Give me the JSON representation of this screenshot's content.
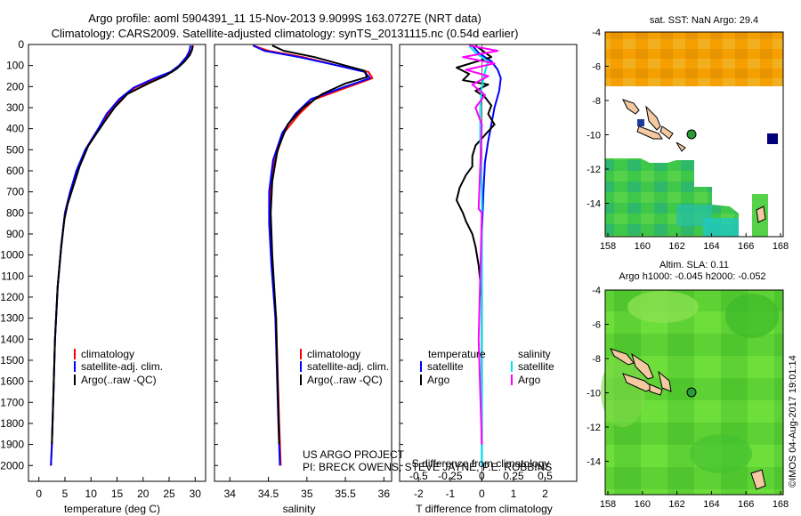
{
  "header": {
    "line1": "Argo profile: aoml 5904391_11 15-Nov-2013 9.9099S 163.0727E (NRT data)",
    "line2": "Climatology: CARS2009. Satellite-adjusted climatology: synTS_20131115.nc (0.54d earlier)"
  },
  "colors": {
    "climatology": "#ff0000",
    "satellite": "#0000ff",
    "argo": "#000000",
    "sal_satellite": "#00e5ee",
    "sal_argo": "#ff00ff"
  },
  "chart_data": [
    {
      "type": "line",
      "title": "",
      "xlabel": "temperature (deg C)",
      "ylabel": "",
      "xlim": [
        -2,
        32
      ],
      "ylim": [
        2075,
        0
      ],
      "xticks": [
        0,
        5,
        10,
        15,
        20,
        25,
        30
      ],
      "yticks": [
        0,
        100,
        200,
        300,
        400,
        500,
        600,
        700,
        800,
        900,
        1000,
        1100,
        1200,
        1300,
        1400,
        1500,
        1600,
        1700,
        1800,
        1900,
        2000
      ],
      "legend": {
        "position": "lower-center",
        "labels": [
          "climatology",
          "satellite-adj. clim.",
          "Argo(..raw -QC)"
        ]
      },
      "series": [
        {
          "name": "climatology",
          "color": "#ff0000",
          "x": [
            29.6,
            29.3,
            28.6,
            27.0,
            25.6,
            22.5,
            18.5,
            15.6,
            13.2,
            11.6,
            9.0,
            7.3,
            6.0,
            5.0,
            4.3,
            3.6,
            3.1,
            2.8,
            2.5,
            2.3
          ],
          "y": [
            5,
            30,
            60,
            100,
            130,
            160,
            205,
            260,
            330,
            400,
            500,
            600,
            700,
            800,
            950,
            1150,
            1400,
            1650,
            1900,
            2000
          ]
        },
        {
          "name": "satellite-adj. clim.",
          "color": "#0000ff",
          "x": [
            29.1,
            28.9,
            28.3,
            26.9,
            25.3,
            22.2,
            18.2,
            15.4,
            13.0,
            11.4,
            8.9,
            7.2,
            6.0,
            5.0,
            4.3,
            3.6,
            3.1,
            2.8,
            2.5,
            2.3
          ],
          "y": [
            5,
            30,
            60,
            100,
            130,
            160,
            205,
            260,
            330,
            400,
            500,
            600,
            700,
            800,
            950,
            1150,
            1400,
            1650,
            1900,
            2000
          ]
        },
        {
          "name": "Argo",
          "color": "#000000",
          "x": [
            29.5,
            29.4,
            29.0,
            28.0,
            26.5,
            24.2,
            21.0,
            17.0,
            14.5,
            12.5,
            9.5,
            7.8,
            5.5,
            4.9,
            4.3,
            3.6,
            3.1,
            2.8,
            2.5
          ],
          "y": [
            5,
            25,
            50,
            80,
            115,
            150,
            185,
            235,
            300,
            370,
            480,
            580,
            760,
            830,
            960,
            1150,
            1400,
            1650,
            1900
          ]
        }
      ]
    },
    {
      "type": "line",
      "title": "",
      "xlabel": "salinity",
      "ylabel": "",
      "xlim": [
        33.8,
        36.1
      ],
      "ylim": [
        2075,
        0
      ],
      "xticks": [
        34,
        34.5,
        35,
        35.5,
        36
      ],
      "legend": {
        "position": "lower-center",
        "labels": [
          "climatology",
          "satellite-adj. clim.",
          "Argo(..raw -QC)"
        ]
      },
      "series": [
        {
          "name": "climatology",
          "color": "#ff0000",
          "x": [
            34.3,
            34.5,
            34.95,
            35.4,
            35.8,
            35.85,
            35.55,
            35.1,
            34.9,
            34.7,
            34.58,
            34.52,
            34.52,
            34.55,
            34.6,
            34.62,
            34.64,
            34.66
          ],
          "y": [
            5,
            30,
            60,
            100,
            130,
            160,
            200,
            260,
            330,
            420,
            550,
            700,
            850,
            1050,
            1300,
            1550,
            1800,
            2000
          ]
        },
        {
          "name": "satellite-adj. clim.",
          "color": "#0000ff",
          "x": [
            34.3,
            34.45,
            34.9,
            35.4,
            35.75,
            35.82,
            35.5,
            35.05,
            34.85,
            34.68,
            34.56,
            34.51,
            34.51,
            34.54,
            34.59,
            34.61,
            34.63,
            34.65
          ],
          "y": [
            5,
            30,
            60,
            100,
            130,
            160,
            200,
            260,
            330,
            420,
            550,
            700,
            850,
            1050,
            1300,
            1550,
            1800,
            2000
          ]
        },
        {
          "name": "Argo",
          "color": "#000000",
          "x": [
            34.55,
            34.7,
            35.1,
            35.5,
            35.75,
            35.78,
            35.5,
            35.2,
            34.95,
            34.75,
            34.62,
            34.55,
            34.53,
            34.55,
            34.6,
            34.62,
            34.64
          ],
          "y": [
            5,
            30,
            60,
            100,
            125,
            155,
            185,
            235,
            300,
            380,
            500,
            650,
            800,
            1000,
            1300,
            1600,
            1900
          ]
        }
      ]
    },
    {
      "type": "line",
      "title": "S difference from climatology",
      "xlabel": "T difference from climatology",
      "ylabel": "",
      "xlim": [
        -2.6,
        3.0
      ],
      "ylim": [
        2075,
        0
      ],
      "xticks": [
        -2,
        -1,
        0,
        1,
        2
      ],
      "top_ticks": [
        "-0.5",
        "-0.25",
        "0",
        "0.25",
        "0.5"
      ],
      "legend": {
        "position": "lower-center",
        "temperature_header": "temperature",
        "salinity_header": "salinity",
        "labels": [
          "satellite",
          "Argo",
          "satellite",
          "Argo"
        ]
      },
      "series": [
        {
          "name": "temperature satellite",
          "color": "#0000ff",
          "x": [
            -0.3,
            -0.1,
            0.3,
            0.5,
            0.6,
            0.55,
            0.4,
            0.3,
            0.2,
            0.1,
            0.05,
            0.0,
            0.0,
            0.0
          ],
          "y": [
            5,
            40,
            80,
            120,
            160,
            220,
            300,
            380,
            460,
            560,
            700,
            900,
            1300,
            2000
          ]
        },
        {
          "name": "temperature Argo",
          "color": "#000000",
          "x": [
            -0.2,
            0.3,
            -0.8,
            -0.4,
            -0.6,
            0.2,
            -0.2,
            0.1,
            0.3,
            0.2,
            0.4,
            0.1,
            -0.2,
            -0.3,
            -0.3,
            -0.5,
            -0.7,
            -0.8,
            -0.6,
            -0.5,
            -0.3,
            -0.2,
            -0.1,
            0.0,
            0.0,
            0.0,
            0.0
          ],
          "y": [
            5,
            60,
            110,
            140,
            170,
            190,
            220,
            250,
            290,
            330,
            380,
            430,
            480,
            530,
            580,
            620,
            680,
            740,
            800,
            840,
            900,
            960,
            1050,
            1200,
            1500,
            1800,
            1900
          ]
        },
        {
          "name": "salinity satellite",
          "color": "#00e5ee",
          "x": [
            -0.4,
            -0.2,
            0.2,
            0.1,
            0.0,
            -0.05,
            -0.05,
            0.0,
            0.0,
            0.0,
            0.0
          ],
          "y": [
            5,
            40,
            80,
            130,
            200,
            300,
            450,
            700,
            1000,
            1500,
            2000
          ]
        },
        {
          "name": "salinity Argo",
          "color": "#ff00ff",
          "x": [
            -0.4,
            0.5,
            -0.6,
            0.4,
            -0.5,
            0.2,
            -0.3,
            0.1,
            -0.2,
            0.0,
            -0.1,
            0.0,
            -0.1,
            0.0
          ],
          "y": [
            5,
            30,
            60,
            90,
            120,
            150,
            190,
            240,
            300,
            380,
            780,
            800,
            1400,
            1900
          ]
        }
      ]
    }
  ],
  "maps": {
    "sst": {
      "title": "sat. SST: NaN Argo: 29.4",
      "xticks": [
        "158",
        "160",
        "162",
        "164",
        "166",
        "168"
      ],
      "yticks": [
        "-4",
        "-6",
        "-8",
        "-10",
        "-12",
        "-14"
      ],
      "marker": {
        "lon": 163.07,
        "lat": -9.91
      }
    },
    "sla": {
      "title_line1": "Altim. SLA: 0.11",
      "title_line2": "Argo h1000: -0.045 h2000: -0.052",
      "xticks": [
        "158",
        "160",
        "162",
        "164",
        "166",
        "168"
      ],
      "yticks": [
        "-4",
        "-6",
        "-8",
        "-10",
        "-12",
        "-14"
      ],
      "marker": {
        "lon": 163.07,
        "lat": -9.91
      }
    }
  },
  "footer": {
    "project_line1": "US ARGO PROJECT",
    "project_line2": "PI: BRECK OWENS, STEVE JAYNE, P.E. ROBBINS",
    "stamp": "©IMOS 04-Aug-2017 19:01:14"
  }
}
